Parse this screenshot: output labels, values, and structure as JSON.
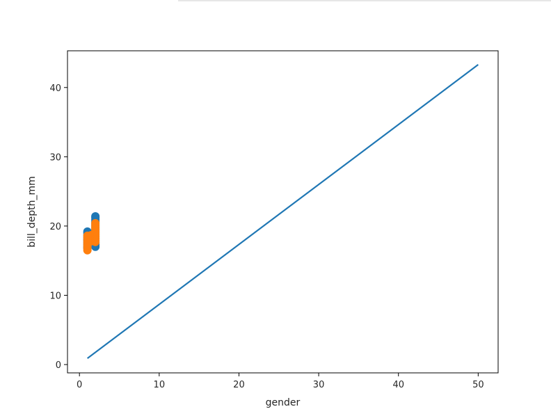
{
  "chart_data": {
    "type": "scatter",
    "xlabel": "gender",
    "ylabel": "bill_depth_mm",
    "xlim": [
      -1.5,
      52.5
    ],
    "ylim": [
      -1.2,
      45.3
    ],
    "xticks": [
      0,
      10,
      20,
      30,
      40,
      50
    ],
    "yticks": [
      0,
      10,
      20,
      30,
      40
    ],
    "grid": false,
    "legend": "none",
    "line": {
      "color": "#1f77b4",
      "x": [
        1,
        50
      ],
      "y": [
        0.9,
        43.3
      ]
    },
    "scatter_series": [
      {
        "color": "#1f77b4",
        "points": [
          [
            1,
            16.8
          ],
          [
            1,
            17.0
          ],
          [
            1,
            17.3
          ],
          [
            1,
            17.6
          ],
          [
            1,
            17.9
          ],
          [
            1,
            18.1
          ],
          [
            1,
            18.4
          ],
          [
            1,
            18.7
          ],
          [
            1,
            19.0
          ],
          [
            1,
            19.2
          ],
          [
            2,
            17.0
          ],
          [
            2,
            17.3
          ],
          [
            2,
            17.6
          ],
          [
            2,
            17.9
          ],
          [
            2,
            18.2
          ],
          [
            2,
            18.5
          ],
          [
            2,
            18.8
          ],
          [
            2,
            19.1
          ],
          [
            2,
            19.4
          ],
          [
            2,
            19.7
          ],
          [
            2,
            20.0
          ],
          [
            2,
            20.3
          ],
          [
            2,
            20.6
          ],
          [
            2,
            20.9
          ],
          [
            2,
            21.2
          ],
          [
            2,
            21.4
          ]
        ]
      },
      {
        "color": "#ff7f0e",
        "points": [
          [
            1,
            16.5
          ],
          [
            1,
            16.8
          ],
          [
            1,
            17.1
          ],
          [
            1,
            17.4
          ],
          [
            1,
            17.7
          ],
          [
            1,
            18.0
          ],
          [
            1,
            18.3
          ],
          [
            1,
            18.6
          ],
          [
            1.5,
            17.8
          ],
          [
            1.5,
            18.1
          ],
          [
            1.5,
            18.4
          ],
          [
            1.5,
            18.7
          ],
          [
            2,
            17.7
          ],
          [
            2,
            18.0
          ],
          [
            2,
            18.3
          ],
          [
            2,
            18.6
          ],
          [
            2,
            18.9
          ],
          [
            2,
            19.2
          ],
          [
            2,
            19.5
          ],
          [
            2,
            19.8
          ],
          [
            2,
            20.1
          ],
          [
            2,
            20.4
          ]
        ]
      }
    ]
  }
}
